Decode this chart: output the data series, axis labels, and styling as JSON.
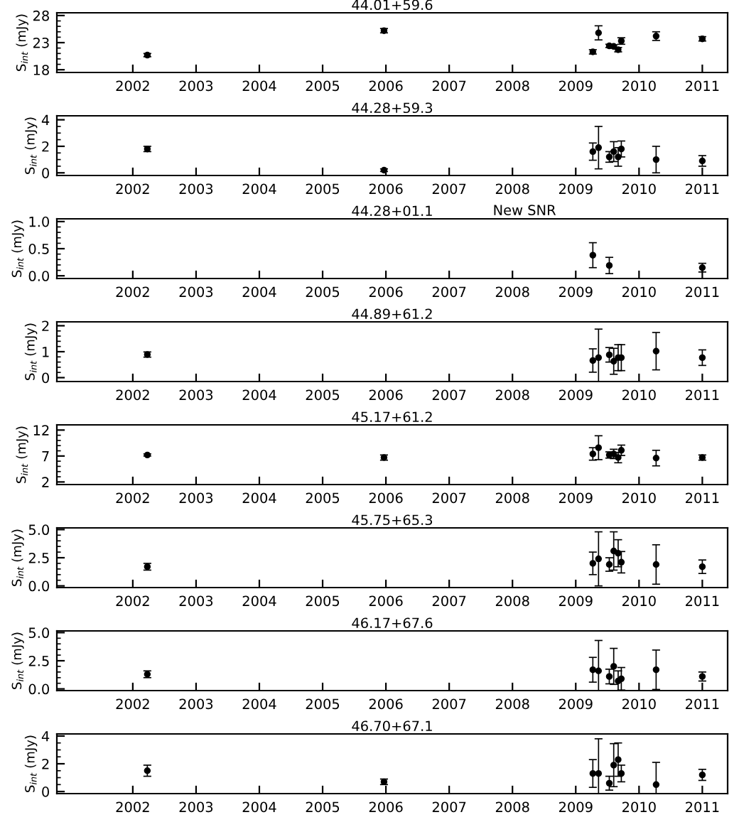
{
  "chart_data": [
    {
      "type": "scatter",
      "title": "44.01+59.6",
      "ylabel": "S$_{int}$ (mJy)",
      "xlim": [
        2000.8,
        2011.4
      ],
      "xticks": [
        2002,
        2003,
        2004,
        2005,
        2006,
        2007,
        2008,
        2009,
        2010,
        2011
      ],
      "ylim": [
        17.5,
        28.5
      ],
      "yticks": [
        18,
        23,
        28
      ],
      "marker": "circle",
      "grid": false,
      "series": [
        {
          "color": "#000000",
          "x": [
            2002.23,
            2005.97,
            2009.27,
            2009.36,
            2009.53,
            2009.6,
            2009.67,
            2009.72,
            2010.27,
            2011.0
          ],
          "values": [
            20.7,
            25.2,
            21.3,
            24.8,
            22.4,
            22.3,
            21.7,
            23.3,
            24.2,
            23.7
          ],
          "errors": [
            0.3,
            0.4,
            0.4,
            1.3,
            0.3,
            0.3,
            0.4,
            0.6,
            0.8,
            0.4
          ]
        }
      ]
    },
    {
      "type": "scatter",
      "title": "44.28+59.3",
      "ylabel": "S$_{int}$ (mJy)",
      "xlim": [
        2000.8,
        2011.4
      ],
      "xticks": [
        2002,
        2003,
        2004,
        2005,
        2006,
        2007,
        2008,
        2009,
        2010,
        2011
      ],
      "ylim": [
        -0.2,
        4.3
      ],
      "yticks": [
        0,
        2,
        4
      ],
      "marker": "circle",
      "grid": false,
      "series": [
        {
          "color": "#000000",
          "x": [
            2002.23,
            2005.97,
            2009.27,
            2009.36,
            2009.53,
            2009.6,
            2009.67,
            2009.72,
            2010.27,
            2011.0
          ],
          "values": [
            1.8,
            0.2,
            1.6,
            1.9,
            1.2,
            1.6,
            1.2,
            1.8,
            1.0,
            0.9
          ],
          "errors": [
            0.2,
            0.1,
            0.65,
            1.6,
            0.4,
            0.75,
            0.7,
            0.6,
            1.0,
            0.4
          ]
        }
      ]
    },
    {
      "type": "scatter",
      "title": "44.28+01.1",
      "ylabel": "S$_{int}$ (mJy)",
      "annotations": [
        "New SNR"
      ],
      "xlim": [
        2000.8,
        2011.4
      ],
      "xticks": [
        2002,
        2003,
        2004,
        2005,
        2006,
        2007,
        2008,
        2009,
        2010,
        2011
      ],
      "ylim": [
        -0.05,
        1.05
      ],
      "yticks": [
        {
          "value": 0,
          "label": "0.0"
        },
        {
          "value": 0.5,
          "label": "0.5"
        },
        {
          "value": 1,
          "label": "1.0"
        }
      ],
      "marker": "circle",
      "grid": false,
      "series": [
        {
          "color": "#000000",
          "x": [
            2009.27,
            2009.53,
            2011.0
          ],
          "values": [
            0.38,
            0.19,
            0.15
          ],
          "errors": [
            0.23,
            0.15,
            0.08
          ]
        }
      ]
    },
    {
      "type": "scatter",
      "title": "44.89+61.2",
      "ylabel": "S$_{int}$ (mJy)",
      "xlim": [
        2000.8,
        2011.4
      ],
      "xticks": [
        2002,
        2003,
        2004,
        2005,
        2006,
        2007,
        2008,
        2009,
        2010,
        2011
      ],
      "ylim": [
        -0.15,
        2.15
      ],
      "yticks": [
        0,
        1,
        2
      ],
      "marker": "circle",
      "grid": false,
      "series": [
        {
          "color": "#000000",
          "x": [
            2002.23,
            2009.27,
            2009.36,
            2009.53,
            2009.6,
            2009.67,
            2009.72,
            2010.27,
            2011.0
          ],
          "values": [
            0.89,
            0.66,
            0.77,
            0.88,
            0.63,
            0.77,
            0.77,
            1.02,
            0.77
          ],
          "errors": [
            0.1,
            0.45,
            1.1,
            0.28,
            0.5,
            0.5,
            0.5,
            0.72,
            0.3
          ]
        }
      ]
    },
    {
      "type": "scatter",
      "title": "45.17+61.2",
      "ylabel": "S$_{int}$ (mJy)",
      "xlim": [
        2000.8,
        2011.4
      ],
      "xticks": [
        2002,
        2003,
        2004,
        2005,
        2006,
        2007,
        2008,
        2009,
        2010,
        2011
      ],
      "ylim": [
        1.5,
        13
      ],
      "yticks": [
        2,
        7,
        12
      ],
      "marker": "circle",
      "grid": false,
      "series": [
        {
          "color": "#000000",
          "x": [
            2002.23,
            2005.97,
            2009.27,
            2009.36,
            2009.53,
            2009.6,
            2009.67,
            2009.72,
            2010.27,
            2011.0
          ],
          "values": [
            7.2,
            6.7,
            7.4,
            8.6,
            7.2,
            7.4,
            6.7,
            8.1,
            6.6,
            6.7
          ],
          "errors": [
            0.2,
            0.5,
            1.2,
            2.3,
            0.6,
            0.9,
            1.0,
            1.0,
            1.5,
            0.5
          ]
        }
      ]
    },
    {
      "type": "scatter",
      "title": "45.75+65.3",
      "ylabel": "S$_{int}$ (mJy)",
      "xlim": [
        2000.8,
        2011.4
      ],
      "xticks": [
        2002,
        2003,
        2004,
        2005,
        2006,
        2007,
        2008,
        2009,
        2010,
        2011
      ],
      "ylim": [
        -0.15,
        5.15
      ],
      "yticks": [
        {
          "value": 0,
          "label": "0.0"
        },
        {
          "value": 2.5,
          "label": "2.5"
        },
        {
          "value": 5,
          "label": "5.0"
        }
      ],
      "marker": "circle",
      "grid": false,
      "series": [
        {
          "color": "#000000",
          "x": [
            2002.23,
            2009.27,
            2009.36,
            2009.53,
            2009.6,
            2009.67,
            2009.72,
            2010.27,
            2011.0
          ],
          "values": [
            1.7,
            2.0,
            2.4,
            1.9,
            3.1,
            2.9,
            2.1,
            1.9,
            1.7
          ],
          "errors": [
            0.3,
            1.0,
            2.4,
            0.6,
            1.7,
            1.2,
            0.95,
            1.75,
            0.6
          ]
        }
      ]
    },
    {
      "type": "scatter",
      "title": "46.17+67.6",
      "ylabel": "S$_{int}$ (mJy)",
      "xlim": [
        2000.8,
        2011.4
      ],
      "xticks": [
        2002,
        2003,
        2004,
        2005,
        2006,
        2007,
        2008,
        2009,
        2010,
        2011
      ],
      "ylim": [
        -0.15,
        5.15
      ],
      "yticks": [
        {
          "value": 0,
          "label": "0.0"
        },
        {
          "value": 2.5,
          "label": "2.5"
        },
        {
          "value": 5,
          "label": "5.0"
        }
      ],
      "marker": "circle",
      "grid": false,
      "series": [
        {
          "color": "#000000",
          "x": [
            2002.23,
            2009.27,
            2009.36,
            2009.53,
            2009.6,
            2009.67,
            2009.72,
            2010.27,
            2011.0
          ],
          "values": [
            1.3,
            1.7,
            1.6,
            1.1,
            2.0,
            0.7,
            0.9,
            1.7,
            1.1
          ],
          "errors": [
            0.3,
            1.1,
            2.7,
            0.65,
            1.6,
            0.9,
            1.0,
            1.75,
            0.4
          ]
        }
      ]
    },
    {
      "type": "scatter",
      "title": "46.70+67.1",
      "ylabel": "S$_{int}$ (mJy)",
      "xlim": [
        2000.8,
        2011.4
      ],
      "xticks": [
        2002,
        2003,
        2004,
        2005,
        2006,
        2007,
        2008,
        2009,
        2010,
        2011
      ],
      "ylim": [
        -0.15,
        4.15
      ],
      "yticks": [
        0,
        2,
        4
      ],
      "marker": "circle",
      "grid": false,
      "series": [
        {
          "color": "#000000",
          "x": [
            2002.23,
            2005.97,
            2009.27,
            2009.36,
            2009.53,
            2009.6,
            2009.67,
            2009.72,
            2010.27,
            2011.0
          ],
          "values": [
            1.5,
            0.7,
            1.3,
            1.3,
            0.6,
            1.9,
            2.3,
            1.3,
            0.5,
            1.2
          ],
          "errors": [
            0.4,
            0.2,
            1.0,
            2.5,
            0.5,
            1.55,
            1.2,
            0.6,
            1.6,
            0.4
          ]
        }
      ]
    }
  ]
}
